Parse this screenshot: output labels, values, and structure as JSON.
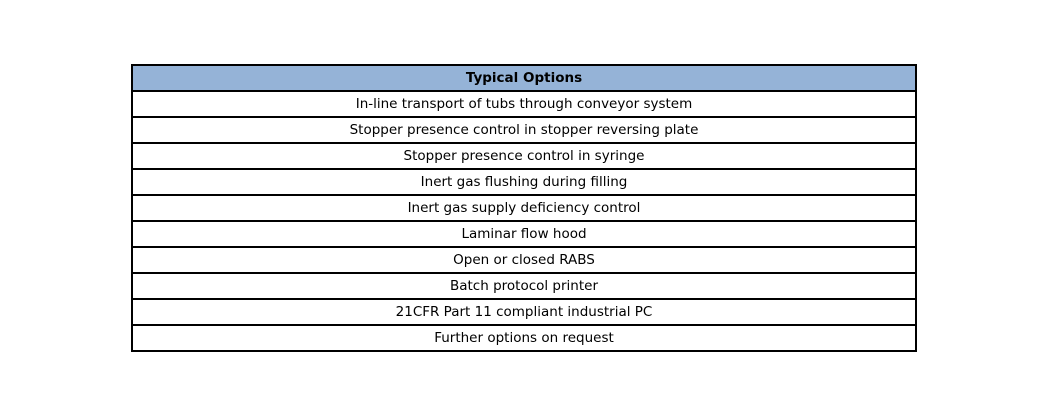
{
  "table": {
    "header": "Typical Options",
    "header_color": "#95b3d7",
    "rows": [
      "In-line transport of tubs through conveyor system",
      "Stopper presence control in stopper reversing plate",
      "Stopper presence control in syringe",
      "Inert gas flushing during filling",
      "Inert gas supply deficiency control",
      "Laminar flow hood",
      "Open or closed RABS",
      "Batch protocol printer",
      "21CFR Part 11 compliant industrial PC",
      "Further options on request"
    ]
  }
}
